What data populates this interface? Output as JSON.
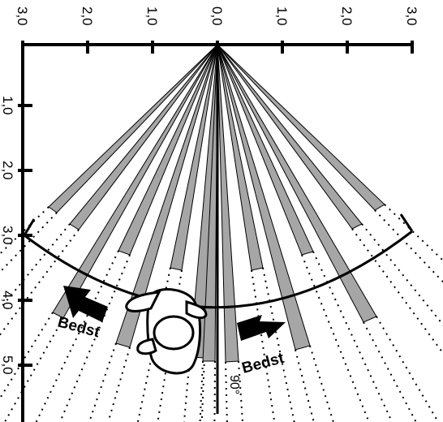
{
  "diagram": {
    "top_ticks": [
      "3,0",
      "2,0",
      "1,0",
      "0,0",
      "1,0",
      "2,0",
      "3,0"
    ],
    "left_ticks": [
      "1,0",
      "2,0",
      "3,0",
      "4,0",
      "5,0"
    ],
    "left_label": "Bedst",
    "right_label": "Bedst",
    "angle_label": "90°",
    "colors": {
      "beam": "#a6a6a6",
      "ink": "#000000"
    }
  }
}
